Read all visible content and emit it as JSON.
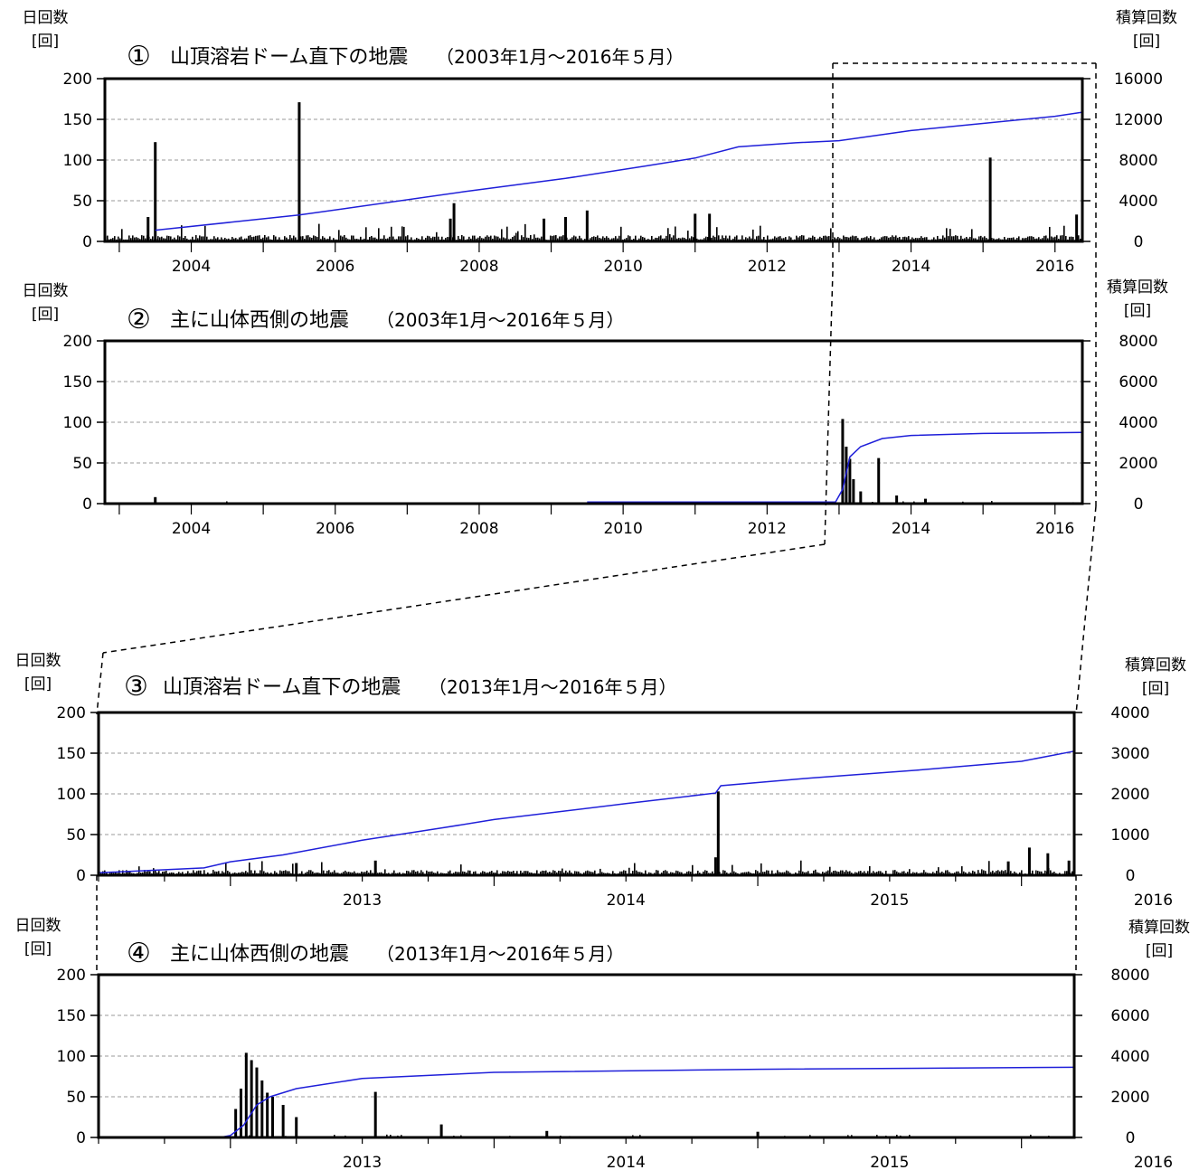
{
  "colors": {
    "bars": "#000000",
    "cumulative_line": "#1f1fd9",
    "grid": "#999999"
  },
  "chart_data": [
    {
      "type": "bar",
      "number": "①",
      "title": "山頂溶岩ドーム直下の地震",
      "period": "（2003年1月～2016年５月）",
      "left_axis_label": [
        "日回数",
        "[回]"
      ],
      "right_axis_label": [
        "積算回数",
        "[回]"
      ],
      "xlim": [
        2002.8,
        2016.38
      ],
      "ylim": [
        0,
        200
      ],
      "y2lim": [
        0,
        16000
      ],
      "yticks": [
        "0",
        "50",
        "100",
        "150",
        "200"
      ],
      "y2ticks": [
        "0",
        "4000",
        "8000",
        "12000",
        "16000"
      ],
      "xticks": [
        "2004",
        "2006",
        "2008",
        "2010",
        "2012",
        "2014",
        "2016"
      ],
      "grid": true,
      "bars": [
        [
          2003.5,
          122
        ],
        [
          2005.5,
          171
        ],
        [
          2007.65,
          47
        ],
        [
          2015.1,
          103
        ],
        [
          2003.4,
          30
        ],
        [
          2007.6,
          28
        ],
        [
          2009.2,
          30
        ],
        [
          2009.5,
          38
        ],
        [
          2011.0,
          34
        ],
        [
          2011.2,
          34
        ],
        [
          2016.3,
          33
        ],
        [
          2008.9,
          28
        ]
      ],
      "baseline_noise": 6,
      "cumulative": [
        [
          2003.5,
          1100
        ],
        [
          2005.5,
          2600
        ],
        [
          2007.8,
          4900
        ],
        [
          2009.2,
          6200
        ],
        [
          2010.3,
          7400
        ],
        [
          2011.0,
          8200
        ],
        [
          2011.6,
          9300
        ],
        [
          2012.4,
          9700
        ],
        [
          2013.0,
          9900
        ],
        [
          2014.0,
          10900
        ],
        [
          2015.0,
          11600
        ],
        [
          2016.0,
          12300
        ],
        [
          2016.38,
          12700
        ]
      ]
    },
    {
      "type": "bar",
      "number": "②",
      "title": "主に山体西側の地震",
      "period": "（2003年1月～2016年５月）",
      "left_axis_label": [
        "日回数",
        "[回]"
      ],
      "right_axis_label": [
        "積算回数",
        "[回]"
      ],
      "xlim": [
        2002.8,
        2016.38
      ],
      "ylim": [
        0,
        200
      ],
      "y2lim": [
        0,
        8000
      ],
      "yticks": [
        "0",
        "50",
        "100",
        "150",
        "200"
      ],
      "y2ticks": [
        "0",
        "2000",
        "4000",
        "6000",
        "8000"
      ],
      "xticks": [
        "2004",
        "2006",
        "2008",
        "2010",
        "2012",
        "2014",
        "2016"
      ],
      "grid": true,
      "bars": [
        [
          2003.5,
          8
        ],
        [
          2013.05,
          104
        ],
        [
          2013.1,
          70
        ],
        [
          2013.15,
          55
        ],
        [
          2013.2,
          30
        ],
        [
          2013.55,
          56
        ],
        [
          2013.3,
          15
        ],
        [
          2013.8,
          10
        ],
        [
          2014.2,
          6
        ]
      ],
      "baseline_noise": 1,
      "cumulative": [
        [
          2009.5,
          80
        ],
        [
          2012.95,
          80
        ],
        [
          2013.05,
          700
        ],
        [
          2013.15,
          2300
        ],
        [
          2013.3,
          2800
        ],
        [
          2013.6,
          3200
        ],
        [
          2014.0,
          3350
        ],
        [
          2015.0,
          3450
        ],
        [
          2016.38,
          3500
        ]
      ]
    },
    {
      "type": "bar",
      "number": "③",
      "title": "山頂溶岩ドーム直下の地震",
      "period": "（2013年1月～2016年５月）",
      "left_axis_label": [
        "日回数",
        "[回]"
      ],
      "right_axis_label": [
        "積算回数",
        "[回]"
      ],
      "xlim": [
        2012.5,
        2016.2
      ],
      "ylim": [
        0,
        200
      ],
      "y2lim": [
        0,
        4000
      ],
      "yticks": [
        "0",
        "50",
        "100",
        "150",
        "200"
      ],
      "y2ticks": [
        "0",
        "1000",
        "2000",
        "3000",
        "4000"
      ],
      "xticks": [
        "2013",
        "2014",
        "2015",
        "2016"
      ],
      "grid": true,
      "bars": [
        [
          2014.85,
          103
        ],
        [
          2014.84,
          22
        ],
        [
          2013.25,
          15
        ],
        [
          2013.55,
          18
        ],
        [
          2016.03,
          34
        ],
        [
          2016.1,
          27
        ],
        [
          2016.18,
          18
        ],
        [
          2015.95,
          17
        ]
      ],
      "baseline_noise": 5,
      "cumulative": [
        [
          2012.5,
          60
        ],
        [
          2012.9,
          180
        ],
        [
          2013.0,
          330
        ],
        [
          2013.2,
          500
        ],
        [
          2013.5,
          860
        ],
        [
          2013.8,
          1160
        ],
        [
          2014.0,
          1370
        ],
        [
          2014.5,
          1760
        ],
        [
          2014.84,
          2020
        ],
        [
          2014.86,
          2200
        ],
        [
          2015.2,
          2390
        ],
        [
          2015.6,
          2580
        ],
        [
          2016.0,
          2800
        ],
        [
          2016.2,
          3050
        ]
      ]
    },
    {
      "type": "bar",
      "number": "④",
      "title": "主に山体西側の地震",
      "period": "（2013年1月～2016年５月）",
      "left_axis_label": [
        "日回数",
        "[回]"
      ],
      "right_axis_label": [
        "積算回数",
        "[回]"
      ],
      "xlim": [
        2012.5,
        2016.2
      ],
      "ylim": [
        0,
        200
      ],
      "y2lim": [
        0,
        8000
      ],
      "yticks": [
        "0",
        "50",
        "100",
        "150",
        "200"
      ],
      "y2ticks": [
        "0",
        "2000",
        "4000",
        "6000",
        "8000"
      ],
      "xticks": [
        "2013",
        "2014",
        "2015",
        "2016"
      ],
      "grid": true,
      "bars": [
        [
          2013.06,
          104
        ],
        [
          2013.08,
          95
        ],
        [
          2013.1,
          86
        ],
        [
          2013.04,
          60
        ],
        [
          2013.02,
          35
        ],
        [
          2013.12,
          70
        ],
        [
          2013.14,
          55
        ],
        [
          2013.16,
          50
        ],
        [
          2013.2,
          40
        ],
        [
          2013.25,
          25
        ],
        [
          2013.55,
          56
        ],
        [
          2013.8,
          16
        ],
        [
          2014.2,
          8
        ],
        [
          2015.0,
          7
        ]
      ],
      "baseline_noise": 1,
      "cumulative": [
        [
          2012.96,
          0
        ],
        [
          2013.0,
          100
        ],
        [
          2013.05,
          600
        ],
        [
          2013.1,
          1600
        ],
        [
          2013.15,
          2000
        ],
        [
          2013.25,
          2400
        ],
        [
          2013.5,
          2900
        ],
        [
          2014.0,
          3200
        ],
        [
          2015.0,
          3350
        ],
        [
          2016.2,
          3450
        ]
      ]
    }
  ]
}
